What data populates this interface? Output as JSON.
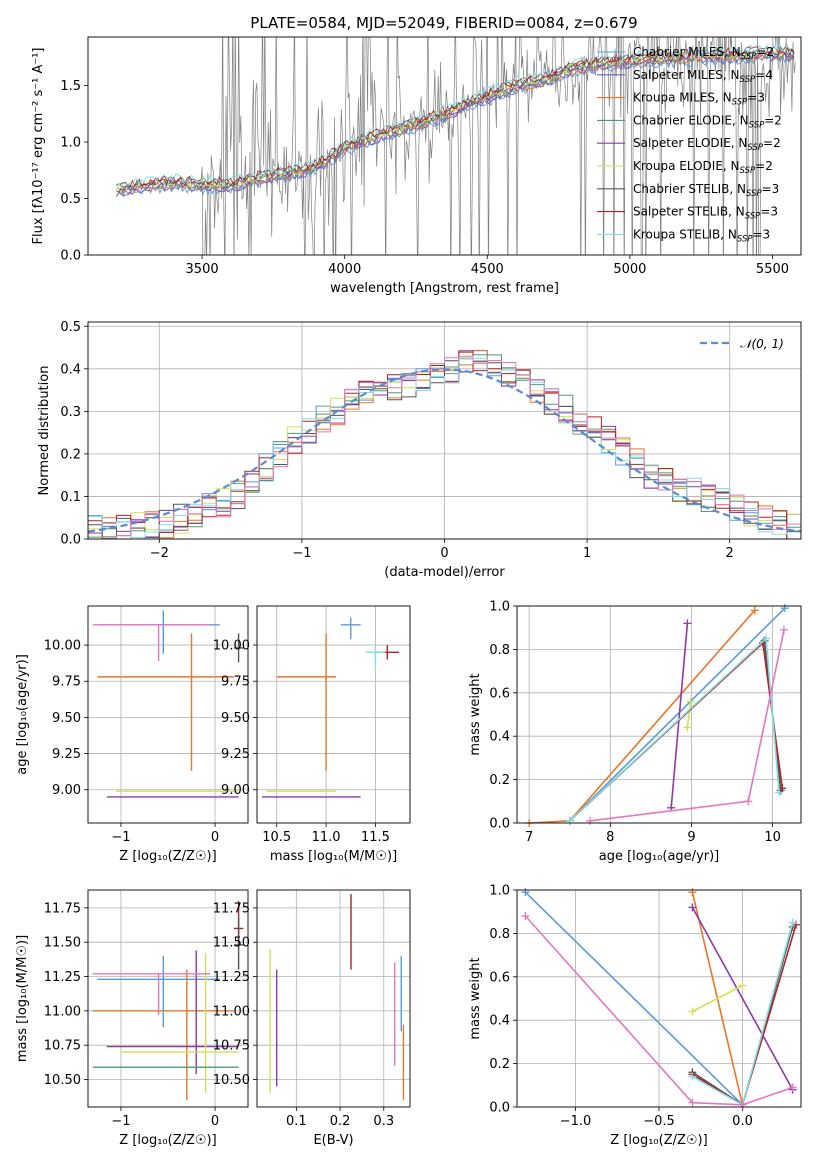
{
  "figure_title": "PLATE=0584, MJD=52049, FIBERID=0084, z=0.679",
  "colors": {
    "Chabrier MILES": "#5b9bd5",
    "Salpeter MILES": "#6a5acd",
    "Kroupa MILES": "#e8762c",
    "Chabrier ELODIE": "#4f9a78",
    "Salpeter ELODIE": "#8e3aa6",
    "Kroupa ELODIE": "#d4e157",
    "Chabrier STELIB": "#555555",
    "Salpeter STELIB": "#b22222",
    "Kroupa STELIB": "#80deea",
    "Kroupa STELIB extra": "#e377c2",
    "normal_curve": "#5b8bd0",
    "data_spectrum": "#808080"
  },
  "chart_data": [
    {
      "id": "spectrum",
      "type": "line",
      "title": "PLATE=0584, MJD=52049, FIBERID=0084, z=0.679",
      "xlabel": "wavelength [Angstrom, rest frame]",
      "ylabel": "Flux [f_λ10^-17 erg cm^-2 s^-1 A^-1]",
      "xlim": [
        3100,
        5600
      ],
      "ylim": [
        0,
        1.93
      ],
      "xticks": [
        3500,
        4000,
        4500,
        5000,
        5500
      ],
      "yticks": [
        0.0,
        0.5,
        1.0,
        1.5
      ],
      "grid": false,
      "legend_position": "top-right",
      "legend": [
        {
          "label": "Chabrier MILES, N_SSP=2",
          "color": "#5b9bd5"
        },
        {
          "label": "Salpeter MILES, N_SSP=4",
          "color": "#6a5acd"
        },
        {
          "label": "Kroupa MILES, N_SSP=3",
          "color": "#e8762c"
        },
        {
          "label": "Chabrier ELODIE, N_SSP=2",
          "color": "#4f9a78"
        },
        {
          "label": "Salpeter ELODIE, N_SSP=2",
          "color": "#8e3aa6"
        },
        {
          "label": "Kroupa ELODIE, N_SSP=2",
          "color": "#d4e157"
        },
        {
          "label": "Chabrier STELIB, N_SSP=3",
          "color": "#555555"
        },
        {
          "label": "Salpeter STELIB, N_SSP=3",
          "color": "#b22222"
        },
        {
          "label": "Kroupa STELIB, N_SSP=3",
          "color": "#80deea"
        }
      ],
      "model_continuum": [
        [
          3200,
          0.58
        ],
        [
          3300,
          0.62
        ],
        [
          3400,
          0.64
        ],
        [
          3500,
          0.62
        ],
        [
          3600,
          0.62
        ],
        [
          3700,
          0.68
        ],
        [
          3800,
          0.72
        ],
        [
          3900,
          0.78
        ],
        [
          4000,
          0.95
        ],
        [
          4100,
          1.05
        ],
        [
          4200,
          1.12
        ],
        [
          4300,
          1.2
        ],
        [
          4400,
          1.3
        ],
        [
          4500,
          1.4
        ],
        [
          4600,
          1.5
        ],
        [
          4700,
          1.55
        ],
        [
          4800,
          1.65
        ],
        [
          4900,
          1.7
        ],
        [
          5000,
          1.72
        ],
        [
          5100,
          1.74
        ],
        [
          5200,
          1.75
        ],
        [
          5300,
          1.76
        ],
        [
          5400,
          1.77
        ],
        [
          5500,
          1.78
        ]
      ]
    },
    {
      "id": "residuals",
      "type": "line",
      "xlabel": "(data-model)/error",
      "ylabel": "Normed distribution",
      "xlim": [
        -2.5,
        2.5
      ],
      "ylim": [
        0,
        0.51
      ],
      "xticks": [
        -2,
        -1,
        0,
        1,
        2
      ],
      "yticks": [
        0.0,
        0.1,
        0.2,
        0.3,
        0.4,
        0.5
      ],
      "grid": true,
      "legend_position": "top-right",
      "legend": [
        {
          "label": "𝒩(0, 1)",
          "color": "#5b8bd0",
          "style": "dashed"
        }
      ],
      "bin_width": 0.1,
      "histogram_envelope": [
        [
          -2.5,
          0.02
        ],
        [
          -2.0,
          0.03
        ],
        [
          -1.5,
          0.09
        ],
        [
          -1.0,
          0.25
        ],
        [
          -0.5,
          0.35
        ],
        [
          0.0,
          0.38
        ],
        [
          0.2,
          0.43
        ],
        [
          0.5,
          0.38
        ],
        [
          1.0,
          0.27
        ],
        [
          1.5,
          0.14
        ],
        [
          2.0,
          0.08
        ],
        [
          2.5,
          0.02
        ]
      ]
    },
    {
      "id": "age_vs_Z",
      "type": "scatter",
      "xlabel": "Z [log10(Z/Z☉)]",
      "ylabel": "age  [log10(age/yr)]",
      "xlim": [
        -1.35,
        0.35
      ],
      "ylim": [
        8.77,
        10.27
      ],
      "xticks": [
        -1,
        0
      ],
      "yticks": [
        9.0,
        9.25,
        9.5,
        9.75,
        10.0
      ],
      "grid": true,
      "points": [
        {
          "series": "Chabrier MILES",
          "x": -0.55,
          "y": 10.14,
          "xerr": [
            0.68,
            0.6
          ],
          "yerr": [
            0.2,
            0.1
          ]
        },
        {
          "series": "Kroupa MILES",
          "x": -0.25,
          "y": 9.78,
          "xerr": [
            1.0,
            0.45
          ],
          "yerr": [
            0.65,
            0.3
          ]
        },
        {
          "series": "Salpeter ELODIE",
          "x": -0.2,
          "y": 8.95,
          "xerr": [
            0.95,
            0.45
          ],
          "yerr": [
            0.0,
            0.0
          ]
        },
        {
          "series": "Kroupa ELODIE",
          "x": -0.1,
          "y": 8.99,
          "xerr": [
            0.95,
            0.35
          ],
          "yerr": [
            0.0,
            0.0
          ]
        },
        {
          "series": "Chabrier STELIB",
          "x": 0.25,
          "y": 9.98,
          "xerr": [
            0.05,
            0.05
          ],
          "yerr": [
            0.1,
            0.1
          ]
        },
        {
          "series": "Kroupa STELIB extra",
          "x": -0.6,
          "y": 10.14,
          "xerr": [
            0.7,
            0.55
          ],
          "yerr": [
            0.25,
            0.0
          ]
        }
      ]
    },
    {
      "id": "age_vs_mass",
      "type": "scatter",
      "xlabel": "mass [log10(M/M☉)]",
      "ylabel": "",
      "xlim": [
        10.3,
        11.85
      ],
      "ylim": [
        8.77,
        10.27
      ],
      "xticks": [
        10.5,
        11.0,
        11.5
      ],
      "yticks": [
        9.0,
        9.25,
        9.5,
        9.75,
        10.0
      ],
      "grid": true,
      "points": [
        {
          "series": "Chabrier MILES",
          "x": 11.25,
          "y": 10.14,
          "xerr": [
            0.1,
            0.1
          ],
          "yerr": [
            0.1,
            0.05
          ]
        },
        {
          "series": "Kroupa MILES",
          "x": 11.0,
          "y": 9.78,
          "xerr": [
            0.5,
            0.1
          ],
          "yerr": [
            0.65,
            0.3
          ]
        },
        {
          "series": "Salpeter ELODIE",
          "x": 10.75,
          "y": 8.95,
          "xerr": [
            0.4,
            0.6
          ],
          "yerr": [
            0.0,
            0.0
          ]
        },
        {
          "series": "Kroupa ELODIE",
          "x": 10.7,
          "y": 8.99,
          "xerr": [
            0.3,
            0.4
          ],
          "yerr": [
            0.0,
            0.0
          ]
        },
        {
          "series": "Salpeter STELIB",
          "x": 11.62,
          "y": 9.95,
          "xerr": [
            0.12,
            0.12
          ],
          "yerr": [
            0.05,
            0.05
          ]
        },
        {
          "series": "Kroupa STELIB",
          "x": 11.5,
          "y": 9.95,
          "xerr": [
            0.1,
            0.1
          ],
          "yerr": [
            0.1,
            0.05
          ]
        }
      ]
    },
    {
      "id": "mass_weight_vs_age",
      "type": "line",
      "xlabel": "age  [log10(age/yr)]",
      "ylabel": "mass weight",
      "xlim": [
        6.85,
        10.35
      ],
      "ylim": [
        0,
        1.0
      ],
      "xticks": [
        7,
        8,
        9,
        10
      ],
      "yticks": [
        0.0,
        0.2,
        0.4,
        0.6,
        0.8,
        1.0
      ],
      "grid": true,
      "series": [
        {
          "name": "Chabrier MILES",
          "points": [
            [
              7.5,
              0.01
            ],
            [
              10.15,
              0.99
            ]
          ]
        },
        {
          "name": "Kroupa MILES",
          "points": [
            [
              7.0,
              0.0
            ],
            [
              7.5,
              0.01
            ],
            [
              9.78,
              0.98
            ]
          ]
        },
        {
          "name": "Salpeter ELODIE",
          "points": [
            [
              8.75,
              0.07
            ],
            [
              8.95,
              0.92
            ]
          ]
        },
        {
          "name": "Kroupa ELODIE",
          "points": [
            [
              8.95,
              0.44
            ],
            [
              8.99,
              0.56
            ]
          ]
        },
        {
          "name": "Chabrier STELIB",
          "points": [
            [
              7.5,
              0.01
            ],
            [
              9.9,
              0.84
            ],
            [
              10.1,
              0.15
            ]
          ]
        },
        {
          "name": "Salpeter STELIB",
          "points": [
            [
              7.5,
              0.01
            ],
            [
              9.88,
              0.83
            ],
            [
              10.12,
              0.16
            ]
          ]
        },
        {
          "name": "Kroupa STELIB",
          "points": [
            [
              7.5,
              0.01
            ],
            [
              9.92,
              0.85
            ],
            [
              10.08,
              0.14
            ]
          ]
        },
        {
          "name": "Kroupa STELIB extra",
          "points": [
            [
              7.75,
              0.01
            ],
            [
              9.7,
              0.1
            ],
            [
              10.14,
              0.89
            ]
          ]
        }
      ]
    },
    {
      "id": "mass_vs_Z",
      "type": "scatter",
      "xlabel": "Z [log10(Z/Z☉)]",
      "ylabel": "mass [log10(M/M☉)]",
      "xlim": [
        -1.35,
        0.35
      ],
      "ylim": [
        10.3,
        11.88
      ],
      "xticks": [
        -1,
        0
      ],
      "yticks": [
        10.5,
        10.75,
        11.0,
        11.25,
        11.5,
        11.75
      ],
      "grid": true,
      "points": [
        {
          "series": "Chabrier MILES",
          "x": -0.55,
          "y": 11.23,
          "xerr": [
            0.7,
            0.6
          ],
          "yerr": [
            0.35,
            0.17
          ]
        },
        {
          "series": "Kroupa MILES",
          "x": -0.3,
          "y": 11.0,
          "xerr": [
            1.0,
            0.5
          ],
          "yerr": [
            0.65,
            0.3
          ]
        },
        {
          "series": "Salpeter ELODIE",
          "x": -0.2,
          "y": 10.74,
          "xerr": [
            0.95,
            0.45
          ],
          "yerr": [
            0.2,
            0.7
          ]
        },
        {
          "series": "Kroupa ELODIE",
          "x": -0.1,
          "y": 10.7,
          "xerr": [
            0.9,
            0.35
          ],
          "yerr": [
            0.3,
            0.72
          ]
        },
        {
          "series": "Chabrier ELODIE",
          "x": -0.5,
          "y": 10.59,
          "xerr": [
            0.8,
            0.75
          ],
          "yerr": [
            0.0,
            0.0
          ]
        },
        {
          "series": "Salpeter STELIB",
          "x": 0.25,
          "y": 11.6,
          "xerr": [
            0.05,
            0.05
          ],
          "yerr": [
            0.15,
            0.2
          ]
        },
        {
          "series": "Chabrier STELIB",
          "x": 0.25,
          "y": 11.48,
          "xerr": [
            0.05,
            0.05
          ],
          "yerr": [
            0.18,
            0.2
          ]
        },
        {
          "series": "Kroupa STELIB extra",
          "x": -0.6,
          "y": 11.27,
          "xerr": [
            0.7,
            0.55
          ],
          "yerr": [
            0.3,
            0.0
          ]
        }
      ]
    },
    {
      "id": "mass_vs_EBV",
      "type": "scatter",
      "xlabel": "E(B-V)",
      "ylabel": "",
      "xlim": [
        0.01,
        0.36
      ],
      "ylim": [
        10.3,
        11.88
      ],
      "xticks": [
        0.1,
        0.2,
        0.3
      ],
      "yticks": [
        10.5,
        10.75,
        11.0,
        11.25,
        11.5,
        11.75
      ],
      "grid": true,
      "points": [
        {
          "series": "Kroupa ELODIE",
          "x": 0.04,
          "y": 10.9,
          "yerr": [
            0.5,
            0.55
          ]
        },
        {
          "series": "Salpeter ELODIE",
          "x": 0.055,
          "y": 10.9,
          "yerr": [
            0.45,
            0.4
          ]
        },
        {
          "series": "Salpeter STELIB",
          "x": 0.225,
          "y": 11.55,
          "yerr": [
            0.25,
            0.3
          ]
        },
        {
          "series": "Kroupa STELIB extra",
          "x": 0.325,
          "y": 11.1,
          "yerr": [
            0.5,
            0.25
          ]
        },
        {
          "series": "Kroupa MILES",
          "x": 0.345,
          "y": 10.9,
          "yerr": [
            0.55,
            0.0
          ]
        },
        {
          "series": "Chabrier MILES",
          "x": 0.34,
          "y": 11.1,
          "yerr": [
            0.25,
            0.3
          ]
        }
      ]
    },
    {
      "id": "mass_weight_vs_Z",
      "type": "line",
      "xlabel": "Z [log10(Z/Z☉)]",
      "ylabel": "mass weight",
      "xlim": [
        -1.35,
        0.35
      ],
      "ylim": [
        0,
        1.0
      ],
      "xticks": [
        -1.0,
        -0.5,
        0.0
      ],
      "yticks": [
        0.0,
        0.2,
        0.4,
        0.6,
        0.8,
        1.0
      ],
      "grid": true,
      "series": [
        {
          "name": "Chabrier MILES",
          "points": [
            [
              -1.3,
              0.99
            ],
            [
              0.0,
              0.01
            ]
          ]
        },
        {
          "name": "Kroupa MILES",
          "points": [
            [
              -0.3,
              0.99
            ],
            [
              0.0,
              0.01
            ]
          ]
        },
        {
          "name": "Salpeter ELODIE",
          "points": [
            [
              -0.3,
              0.92
            ],
            [
              0.3,
              0.08
            ]
          ]
        },
        {
          "name": "Kroupa ELODIE",
          "points": [
            [
              -0.3,
              0.44
            ],
            [
              0.0,
              0.56
            ]
          ]
        },
        {
          "name": "Chabrier STELIB",
          "points": [
            [
              -0.3,
              0.16
            ],
            [
              0.0,
              0.01
            ],
            [
              0.3,
              0.83
            ]
          ]
        },
        {
          "name": "Salpeter STELIB",
          "points": [
            [
              -0.3,
              0.15
            ],
            [
              0.0,
              0.01
            ],
            [
              0.32,
              0.84
            ]
          ]
        },
        {
          "name": "Kroupa STELIB",
          "points": [
            [
              -0.3,
              0.14
            ],
            [
              0.0,
              0.01
            ],
            [
              0.3,
              0.85
            ]
          ]
        },
        {
          "name": "Kroupa STELIB extra",
          "points": [
            [
              -1.3,
              0.88
            ],
            [
              -0.3,
              0.02
            ],
            [
              0.0,
              0.01
            ],
            [
              0.3,
              0.09
            ]
          ]
        }
      ]
    }
  ]
}
